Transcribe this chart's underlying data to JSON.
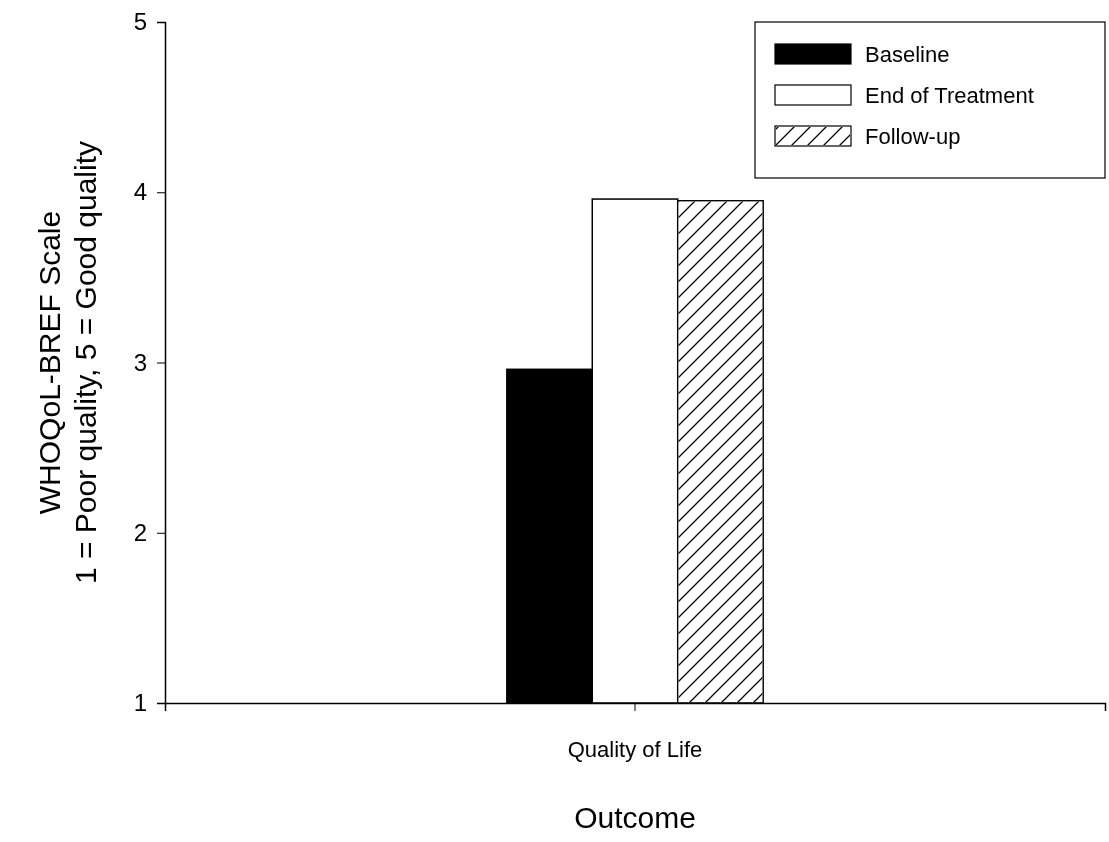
{
  "chart_data": {
    "type": "bar",
    "xlabel": "Outcome",
    "ylabel": "WHOQoL-BREF Scale\n1 = Poor quality, 5 = Good quality",
    "categories": [
      "Quality of Life"
    ],
    "series": [
      {
        "name": "Baseline",
        "color": "#000000",
        "values": [
          2.96
        ]
      },
      {
        "name": "End of Treatment",
        "color": "#ffffff",
        "values": [
          3.96
        ]
      },
      {
        "name": "Follow-up",
        "color": "#ffffff",
        "values": [
          3.95
        ]
      }
    ],
    "ylim": [
      1,
      5
    ],
    "yticks": [
      1,
      2,
      3,
      4,
      5
    ],
    "legend": "top right"
  }
}
